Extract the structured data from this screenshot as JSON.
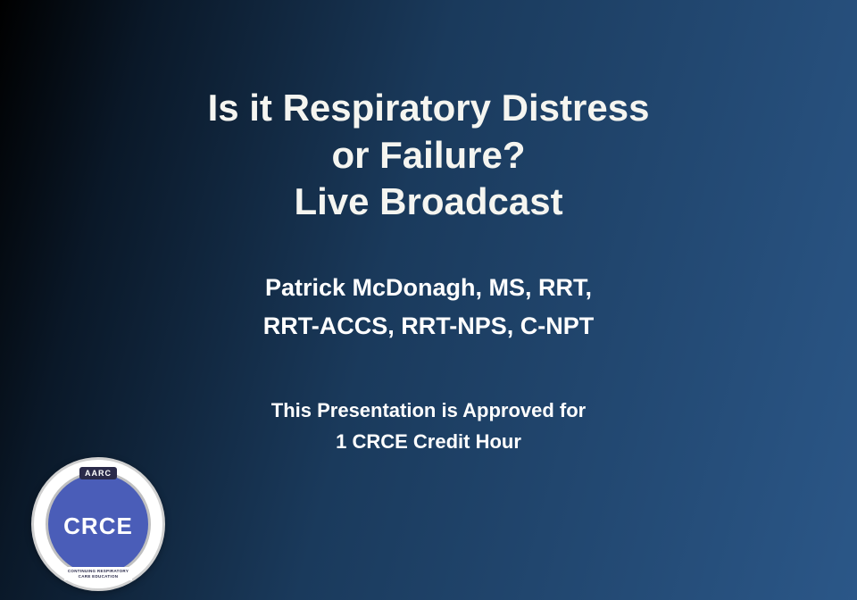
{
  "slide": {
    "title_line1": "Is it Respiratory Distress",
    "title_line2": "or Failure?",
    "title_line3": "Live Broadcast",
    "presenter_line1": "Patrick McDonagh, MS, RRT,",
    "presenter_line2": "RRT-ACCS, RRT-NPS, C-NPT",
    "credit_line1": "This Presentation is Approved for",
    "credit_line2": "1 CRCE Credit Hour"
  },
  "logo": {
    "top_text": "AARC",
    "main_text": "CRCE",
    "subtitle_line1": "CONTINUING RESPIRATORY",
    "subtitle_line2": "CARE EDUCATION"
  },
  "styling": {
    "background_gradient_start": "#000000",
    "background_gradient_mid": "#1a3a5c",
    "background_gradient_end": "#2b5788",
    "title_color": "#f5f5f0",
    "text_color": "#ffffff",
    "logo_bg": "#ffffff",
    "logo_inner_bg": "#4a5db8",
    "title_fontsize": 42,
    "presenter_fontsize": 27,
    "credit_fontsize": 22
  }
}
